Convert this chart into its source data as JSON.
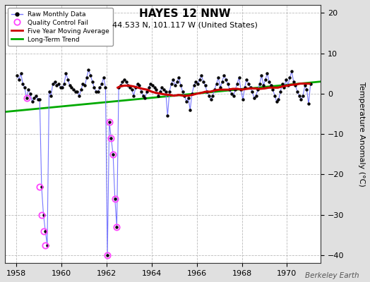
{
  "title": "HAYES 12 NNW",
  "subtitle": "44.533 N, 101.117 W (United States)",
  "ylabel": "Temperature Anomaly (°C)",
  "watermark": "Berkeley Earth",
  "xlim": [
    1957.5,
    1971.5
  ],
  "ylim": [
    -42,
    22
  ],
  "xticks": [
    1958,
    1960,
    1962,
    1964,
    1966,
    1968,
    1970
  ],
  "yticks": [
    -40,
    -30,
    -20,
    -10,
    0,
    10,
    20
  ],
  "bg_color": "#e0e0e0",
  "plot_bg_color": "#ffffff",
  "grid_color": "#aaaaaa",
  "raw_line_color": "#7777ff",
  "raw_marker_color": "#000000",
  "qc_fail_color": "#ff44ff",
  "moving_avg_color": "#cc0000",
  "trend_color": "#00aa00",
  "raw_x": [
    1958.042,
    1958.125,
    1958.208,
    1958.292,
    1958.375,
    1958.458,
    1958.542,
    1958.625,
    1958.708,
    1958.792,
    1958.875,
    1958.958,
    1959.042,
    1959.125,
    1959.208,
    1959.292,
    1959.375,
    1959.458,
    1959.542,
    1959.625,
    1959.708,
    1959.792,
    1959.875,
    1959.958,
    1960.042,
    1960.125,
    1960.208,
    1960.292,
    1960.375,
    1960.458,
    1960.542,
    1960.625,
    1960.708,
    1960.792,
    1960.875,
    1960.958,
    1961.042,
    1961.125,
    1961.208,
    1961.292,
    1961.375,
    1961.458,
    1961.542,
    1961.625,
    1961.708,
    1961.792,
    1961.875,
    1961.958,
    1962.042,
    1962.125,
    1962.208,
    1962.292,
    1962.375,
    1962.458,
    1962.542,
    1962.625,
    1962.708,
    1962.792,
    1962.875,
    1962.958,
    1963.042,
    1963.125,
    1963.208,
    1963.292,
    1963.375,
    1963.458,
    1963.542,
    1963.625,
    1963.708,
    1963.792,
    1963.875,
    1963.958,
    1964.042,
    1964.125,
    1964.208,
    1964.292,
    1964.375,
    1964.458,
    1964.542,
    1964.625,
    1964.708,
    1964.792,
    1964.875,
    1964.958,
    1965.042,
    1965.125,
    1965.208,
    1965.292,
    1965.375,
    1965.458,
    1965.542,
    1965.625,
    1965.708,
    1965.792,
    1965.875,
    1965.958,
    1966.042,
    1966.125,
    1966.208,
    1966.292,
    1966.375,
    1966.458,
    1966.542,
    1966.625,
    1966.708,
    1966.792,
    1966.875,
    1966.958,
    1967.042,
    1967.125,
    1967.208,
    1967.292,
    1967.375,
    1967.458,
    1967.542,
    1967.625,
    1967.708,
    1967.792,
    1967.875,
    1967.958,
    1968.042,
    1968.125,
    1968.208,
    1968.292,
    1968.375,
    1968.458,
    1968.542,
    1968.625,
    1968.708,
    1968.792,
    1968.875,
    1968.958,
    1969.042,
    1969.125,
    1969.208,
    1969.292,
    1969.375,
    1969.458,
    1969.542,
    1969.625,
    1969.708,
    1969.792,
    1969.875,
    1969.958,
    1970.042,
    1970.125,
    1970.208,
    1970.292,
    1970.375,
    1970.458,
    1970.542,
    1970.625,
    1970.708,
    1970.792,
    1970.875,
    1970.958,
    1971.042
  ],
  "raw_y": [
    4.5,
    3.5,
    5.0,
    2.5,
    1.5,
    -1.0,
    1.0,
    0.0,
    -2.0,
    -1.0,
    -0.5,
    -1.5,
    -1.5,
    -23.0,
    -30.0,
    -34.0,
    -37.5,
    0.5,
    -0.5,
    2.5,
    3.0,
    2.0,
    2.5,
    1.5,
    1.5,
    2.5,
    5.0,
    3.5,
    2.0,
    1.5,
    1.0,
    0.5,
    0.5,
    -0.5,
    1.0,
    2.5,
    2.0,
    4.0,
    6.0,
    4.5,
    3.0,
    1.5,
    0.5,
    0.5,
    1.5,
    2.5,
    4.0,
    1.5,
    -40.0,
    -7.0,
    -11.0,
    -15.0,
    -26.0,
    -33.0,
    1.5,
    2.0,
    3.0,
    3.5,
    3.0,
    2.0,
    1.5,
    1.0,
    -0.5,
    1.5,
    2.5,
    2.0,
    0.5,
    -0.5,
    -1.0,
    0.5,
    1.5,
    2.5,
    2.0,
    1.5,
    1.0,
    -0.5,
    0.5,
    1.5,
    1.0,
    0.5,
    -5.5,
    0.5,
    2.5,
    3.5,
    2.0,
    3.0,
    4.0,
    2.0,
    0.5,
    -0.5,
    -2.0,
    -1.0,
    -4.0,
    0.0,
    2.0,
    3.0,
    2.5,
    3.5,
    4.5,
    3.0,
    2.0,
    0.5,
    -0.5,
    -1.5,
    -0.5,
    1.0,
    2.5,
    4.0,
    1.5,
    3.0,
    4.5,
    3.5,
    2.5,
    1.0,
    0.0,
    -0.5,
    1.0,
    2.5,
    4.0,
    1.0,
    -1.5,
    1.5,
    3.5,
    2.5,
    1.5,
    0.5,
    -1.0,
    -0.5,
    1.0,
    2.5,
    4.5,
    2.0,
    3.5,
    5.0,
    3.0,
    2.0,
    1.0,
    -0.5,
    -2.0,
    -1.5,
    0.5,
    2.5,
    1.5,
    3.5,
    2.0,
    4.0,
    5.5,
    3.0,
    2.0,
    0.5,
    -0.5,
    -1.5,
    -0.5,
    2.0,
    1.0,
    -2.5,
    2.5
  ],
  "qc_fail_x": [
    1958.458,
    1959.042,
    1959.125,
    1959.208,
    1959.292,
    1962.042,
    1962.125,
    1962.208,
    1962.292,
    1962.375,
    1962.458
  ],
  "qc_fail_y": [
    -1.0,
    -23.0,
    -30.0,
    -34.0,
    -37.5,
    -40.0,
    -7.0,
    -11.0,
    -15.0,
    -26.0,
    -33.0
  ],
  "moving_avg_x": [
    1962.5,
    1962.6,
    1962.8,
    1963.0,
    1963.2,
    1963.4,
    1963.6,
    1963.8,
    1964.0,
    1964.2,
    1964.4,
    1964.6,
    1964.8,
    1965.0,
    1965.2,
    1965.4,
    1965.6,
    1965.8,
    1966.0,
    1966.2,
    1966.4,
    1966.6,
    1966.8,
    1967.0,
    1967.2,
    1967.4,
    1967.6,
    1967.8,
    1968.0,
    1968.2,
    1968.4,
    1968.6,
    1968.8,
    1969.0,
    1969.2,
    1969.4,
    1969.6,
    1969.8,
    1970.0,
    1970.2,
    1970.4,
    1970.6,
    1970.8,
    1971.0
  ],
  "moving_avg_y": [
    1.5,
    1.8,
    2.0,
    2.0,
    1.8,
    1.5,
    1.2,
    1.0,
    0.5,
    0.2,
    0.0,
    -0.2,
    -0.3,
    -0.5,
    -0.3,
    -0.5,
    -0.5,
    -0.3,
    0.0,
    0.2,
    0.5,
    0.5,
    0.8,
    1.0,
    1.0,
    1.0,
    1.2,
    1.2,
    1.0,
    1.2,
    1.3,
    1.3,
    1.2,
    1.3,
    1.5,
    1.5,
    1.5,
    1.8,
    2.0,
    2.2,
    2.3,
    2.5,
    2.5,
    2.5
  ],
  "trend_x": [
    1957.5,
    1971.5
  ],
  "trend_y": [
    -4.5,
    3.0
  ]
}
